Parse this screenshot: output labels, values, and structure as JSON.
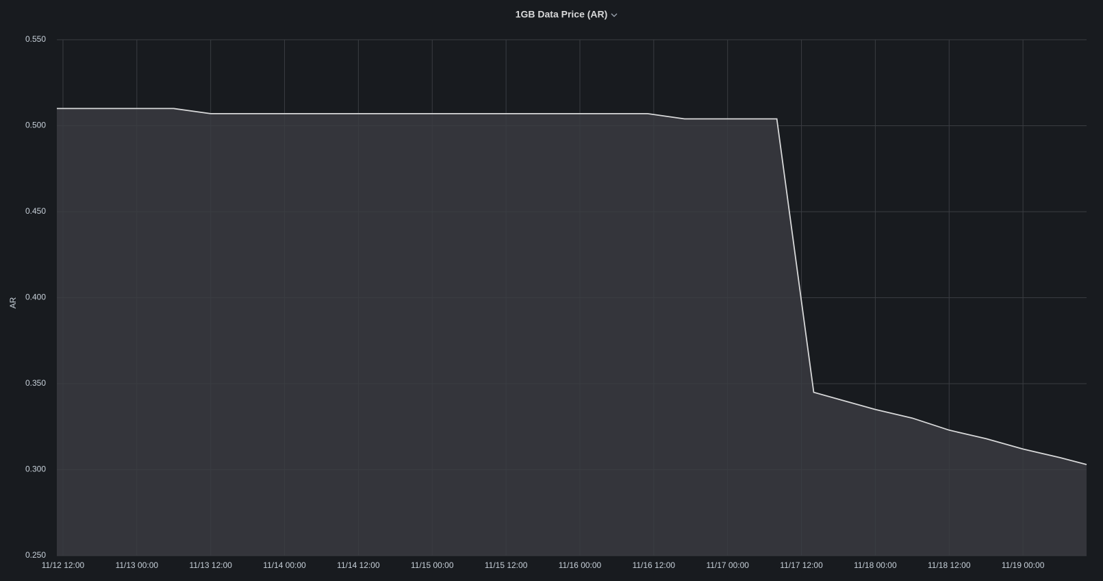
{
  "chart_data": {
    "type": "line",
    "title": "1GB Data Price (AR)",
    "y_label": "AR",
    "x": [
      "11/12 11:00",
      "11/13 06:00",
      "11/13 12:00",
      "11/16 11:00",
      "11/16 17:00",
      "11/17 08:00",
      "11/17 14:00",
      "11/17 18:00",
      "11/18 00:00",
      "11/18 06:00",
      "11/18 12:00",
      "11/18 18:00",
      "11/19 00:00",
      "11/19 06:00",
      "11/19 10:20"
    ],
    "values": [
      0.51,
      0.51,
      0.507,
      0.507,
      0.504,
      0.504,
      0.345,
      0.341,
      0.335,
      0.33,
      0.323,
      0.318,
      0.312,
      0.307,
      0.303
    ],
    "color": "#d8d9da",
    "fill": "#34353b",
    "xlim": [
      "11/12 11:00",
      "11/19 10:20"
    ],
    "xticks": [
      "11/12 12:00",
      "11/13 00:00",
      "11/13 12:00",
      "11/14 00:00",
      "11/14 12:00",
      "11/15 00:00",
      "11/15 12:00",
      "11/16 00:00",
      "11/16 12:00",
      "11/17 00:00",
      "11/17 12:00",
      "11/18 00:00",
      "11/18 12:00",
      "11/19 00:00"
    ],
    "ylim": [
      0.25,
      0.55
    ],
    "yticks": [
      {
        "value": 0.25,
        "label": "0.250"
      },
      {
        "value": 0.3,
        "label": "0.300"
      },
      {
        "value": 0.35,
        "label": "0.350"
      },
      {
        "value": 0.4,
        "label": "0.400"
      },
      {
        "value": 0.45,
        "label": "0.450"
      },
      {
        "value": 0.5,
        "label": "0.500"
      },
      {
        "value": 0.55,
        "label": "0.550"
      }
    ],
    "grid": true
  }
}
